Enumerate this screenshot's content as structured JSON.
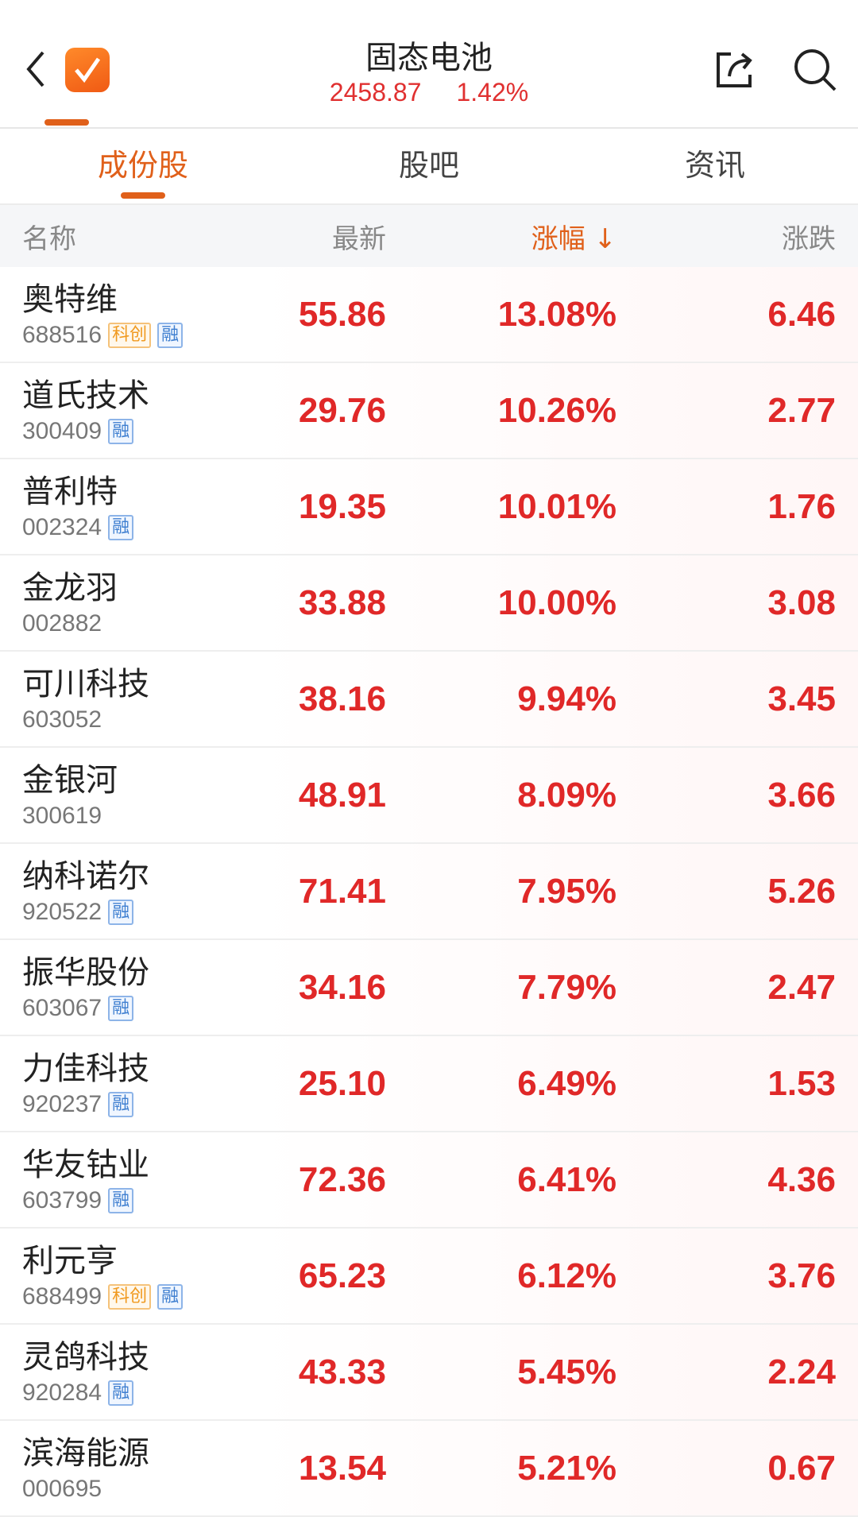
{
  "header": {
    "title": "固态电池",
    "index_value": "2458.87",
    "index_change": "1.42%"
  },
  "tabs": [
    {
      "label": "成份股",
      "active": true
    },
    {
      "label": "股吧",
      "active": false
    },
    {
      "label": "资讯",
      "active": false
    }
  ],
  "columns": {
    "name": "名称",
    "latest": "最新",
    "change_pct": "涨幅 ↓",
    "change": "涨跌"
  },
  "colors": {
    "accent": "#e0601a",
    "up": "#e02828"
  },
  "rows": [
    {
      "name": "奥特维",
      "code": "688516",
      "tags": [
        "科创",
        "融"
      ],
      "latest": "55.86",
      "pct": "13.08%",
      "chg": "6.46"
    },
    {
      "name": "道氏技术",
      "code": "300409",
      "tags": [
        "融"
      ],
      "latest": "29.76",
      "pct": "10.26%",
      "chg": "2.77"
    },
    {
      "name": "普利特",
      "code": "002324",
      "tags": [
        "融"
      ],
      "latest": "19.35",
      "pct": "10.01%",
      "chg": "1.76"
    },
    {
      "name": "金龙羽",
      "code": "002882",
      "tags": [],
      "latest": "33.88",
      "pct": "10.00%",
      "chg": "3.08"
    },
    {
      "name": "可川科技",
      "code": "603052",
      "tags": [],
      "latest": "38.16",
      "pct": "9.94%",
      "chg": "3.45"
    },
    {
      "name": "金银河",
      "code": "300619",
      "tags": [],
      "latest": "48.91",
      "pct": "8.09%",
      "chg": "3.66"
    },
    {
      "name": "纳科诺尔",
      "code": "920522",
      "tags": [
        "融"
      ],
      "latest": "71.41",
      "pct": "7.95%",
      "chg": "5.26"
    },
    {
      "name": "振华股份",
      "code": "603067",
      "tags": [
        "融"
      ],
      "latest": "34.16",
      "pct": "7.79%",
      "chg": "2.47"
    },
    {
      "name": "力佳科技",
      "code": "920237",
      "tags": [
        "融"
      ],
      "latest": "25.10",
      "pct": "6.49%",
      "chg": "1.53"
    },
    {
      "name": "华友钴业",
      "code": "603799",
      "tags": [
        "融"
      ],
      "latest": "72.36",
      "pct": "6.41%",
      "chg": "4.36"
    },
    {
      "name": "利元亨",
      "code": "688499",
      "tags": [
        "科创",
        "融"
      ],
      "latest": "65.23",
      "pct": "6.12%",
      "chg": "3.76"
    },
    {
      "name": "灵鸽科技",
      "code": "920284",
      "tags": [
        "融"
      ],
      "latest": "43.33",
      "pct": "5.45%",
      "chg": "2.24"
    },
    {
      "name": "滨海能源",
      "code": "000695",
      "tags": [],
      "latest": "13.54",
      "pct": "5.21%",
      "chg": "0.67"
    }
  ]
}
